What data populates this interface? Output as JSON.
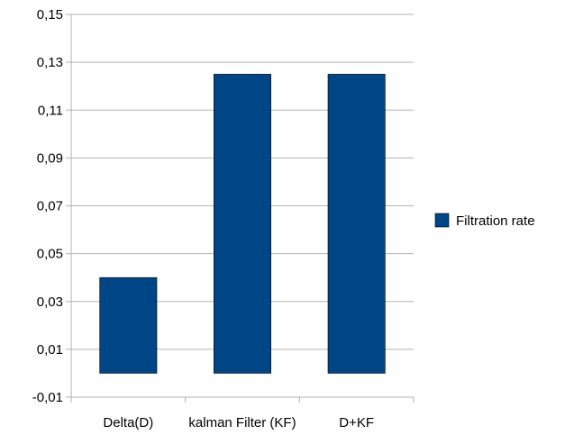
{
  "chart_data": {
    "type": "bar",
    "categories": [
      "Delta(D)",
      "kalman Filter (KF)",
      "D+KF"
    ],
    "series": [
      {
        "name": "Filtration rate",
        "values": [
          0.04,
          0.125,
          0.125
        ],
        "color": "#004586"
      }
    ],
    "ylim": [
      -0.01,
      0.15
    ],
    "yticks": [
      -0.01,
      0.01,
      0.03,
      0.05,
      0.07,
      0.09,
      0.11,
      0.13,
      0.15
    ],
    "ytick_labels": [
      "-0,01",
      "0,01",
      "0,03",
      "0,05",
      "0,07",
      "0,09",
      "0,11",
      "0,13",
      "0,15"
    ],
    "grid": true,
    "legend_position": "right"
  }
}
